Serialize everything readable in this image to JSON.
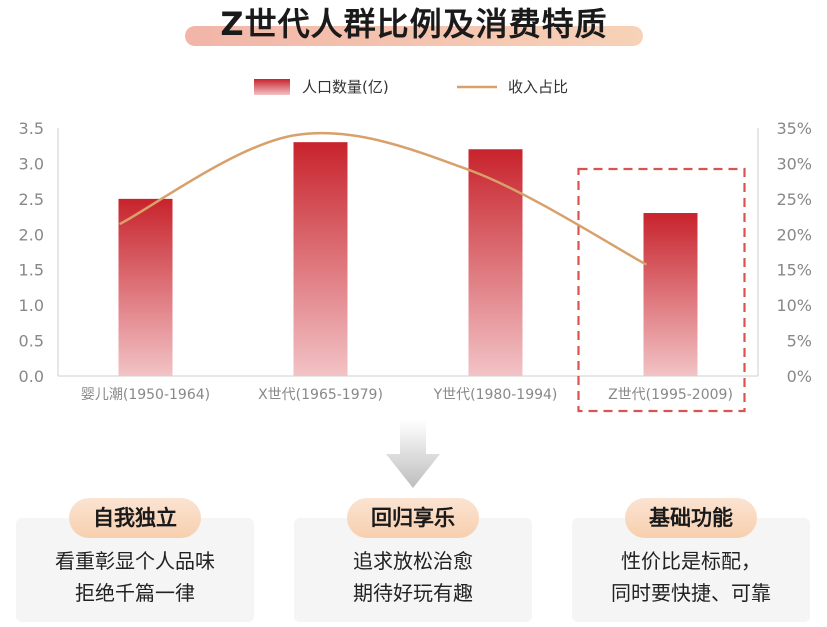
{
  "title": "Z世代人群比例及消费特质",
  "chart_data": {
    "type": "bar+line",
    "categories": [
      "婴儿潮(1950-1964)",
      "X世代(1965-1979)",
      "Y世代(1980-1994)",
      "Z世代(1995-2009)"
    ],
    "series": [
      {
        "name": "人口数量(亿)",
        "type": "bar",
        "axis": "left",
        "values": [
          2.5,
          3.3,
          3.2,
          2.3
        ]
      },
      {
        "name": "收入占比",
        "type": "line",
        "axis": "right",
        "values": [
          21.5,
          34,
          29,
          15.8
        ]
      }
    ],
    "y_left": {
      "min": 0,
      "max": 3.5,
      "ticks": [
        "0.0",
        "0.5",
        "1.0",
        "1.5",
        "2.0",
        "2.5",
        "3.0",
        "3.5"
      ]
    },
    "y_right": {
      "min": 0,
      "max": 35,
      "ticks": [
        "0%",
        "5%",
        "10%",
        "15%",
        "20%",
        "25%",
        "30%",
        "35%"
      ]
    },
    "legend_position": "top-center",
    "highlight_category": "Z世代(1995-2009)",
    "colors": {
      "bar_top": "#c8232c",
      "bar_bottom": "#f2c3c6",
      "line": "#d8a06a",
      "highlight": "#d9534f",
      "axis_text": "#888888"
    }
  },
  "cards": [
    {
      "title": "自我独立",
      "lines": [
        "看重彰显个人品味",
        "拒绝千篇一律"
      ]
    },
    {
      "title": "回归享乐",
      "lines": [
        "追求放松治愈",
        "期待好玩有趣"
      ]
    },
    {
      "title": "基础功能",
      "lines": [
        "性价比是标配，",
        "同时要快捷、可靠"
      ]
    }
  ]
}
